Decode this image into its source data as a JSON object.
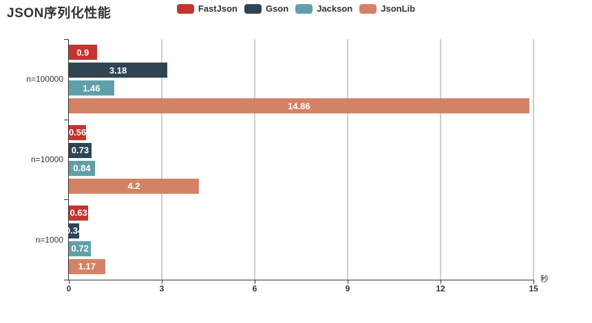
{
  "chart_data": {
    "type": "bar",
    "orientation": "horizontal",
    "title": "JSON序列化性能",
    "categories": [
      "n=100000",
      "n=10000",
      "n=1000"
    ],
    "series": [
      {
        "name": "FastJson",
        "color": "#c23531",
        "values": [
          0.9,
          0.56,
          0.63
        ]
      },
      {
        "name": "Gson",
        "color": "#2f4554",
        "values": [
          3.18,
          0.73,
          0.34
        ]
      },
      {
        "name": "Jackson",
        "color": "#61a0a8",
        "values": [
          1.46,
          0.84,
          0.72
        ]
      },
      {
        "name": "JsonLib",
        "color": "#d48265",
        "values": [
          14.86,
          4.2,
          1.17
        ]
      }
    ],
    "value_labels": [
      [
        "0.9",
        "0.56",
        "0.63"
      ],
      [
        "3.18",
        "0.73",
        "0.34"
      ],
      [
        "1.46",
        "0.84",
        "0.72"
      ],
      [
        "14.86",
        "4.2",
        "1.17"
      ]
    ],
    "xlabel": "秒",
    "x_ticks": [
      "0",
      "3",
      "6",
      "9",
      "12",
      "15"
    ],
    "xlim": [
      0,
      15
    ],
    "grid": true,
    "legend_position": "top",
    "colors": {
      "text": "#333333",
      "axis": "#333333",
      "gridline": "#cccccc",
      "bar_label": "#ffffff",
      "background": "#ffffff"
    }
  }
}
